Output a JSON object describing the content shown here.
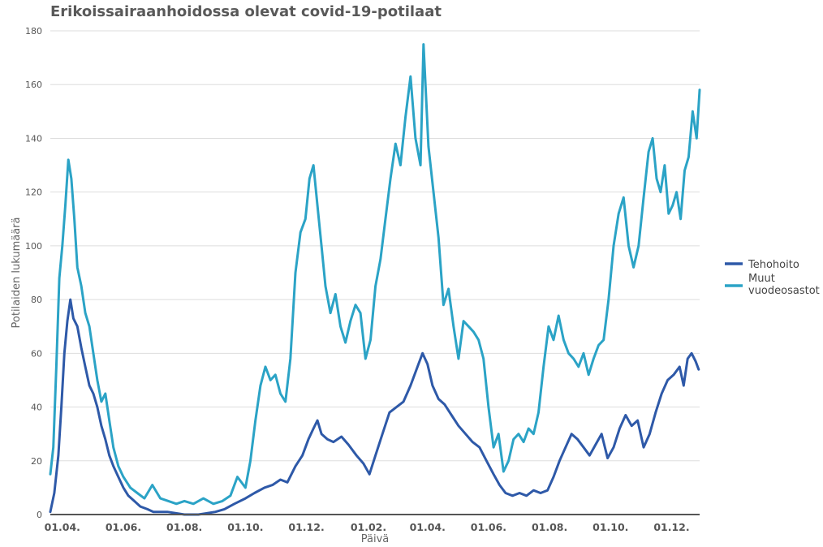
{
  "chart_data": {
    "type": "line",
    "title": "Erikoissairaanhoidossa olevat covid-19-potilaat",
    "xlabel": "Päivä",
    "ylabel": "Potilaiden lukumäärä",
    "ylim": [
      0,
      180
    ],
    "yticks": [
      "0",
      "20",
      "40",
      "60",
      "80",
      "100",
      "120",
      "140",
      "160",
      "180"
    ],
    "x_start": "2020-03-20",
    "x_end": "2021-12-29",
    "xticks": [
      {
        "date": "2020-04-01",
        "label": "01.04."
      },
      {
        "date": "2020-06-01",
        "label": "01.06."
      },
      {
        "date": "2020-08-01",
        "label": "01.08."
      },
      {
        "date": "2020-10-01",
        "label": "01.10."
      },
      {
        "date": "2020-12-01",
        "label": "01.12."
      },
      {
        "date": "2021-02-01",
        "label": "01.02."
      },
      {
        "date": "2021-04-01",
        "label": "01.04."
      },
      {
        "date": "2021-06-01",
        "label": "01.06."
      },
      {
        "date": "2021-08-01",
        "label": "01.08."
      },
      {
        "date": "2021-10-01",
        "label": "01.10."
      },
      {
        "date": "2021-12-01",
        "label": "01.12."
      }
    ],
    "grid": true,
    "legend": "right",
    "series": [
      {
        "name": "Tehohoito",
        "color": "#2E59A8",
        "points": [
          [
            "2020-03-20",
            1
          ],
          [
            "2020-03-24",
            8
          ],
          [
            "2020-03-28",
            22
          ],
          [
            "2020-03-31",
            40
          ],
          [
            "2020-04-03",
            60
          ],
          [
            "2020-04-06",
            72
          ],
          [
            "2020-04-09",
            80
          ],
          [
            "2020-04-12",
            73
          ],
          [
            "2020-04-16",
            70
          ],
          [
            "2020-04-20",
            62
          ],
          [
            "2020-04-24",
            55
          ],
          [
            "2020-04-28",
            48
          ],
          [
            "2020-05-02",
            45
          ],
          [
            "2020-05-06",
            40
          ],
          [
            "2020-05-10",
            33
          ],
          [
            "2020-05-14",
            28
          ],
          [
            "2020-05-18",
            22
          ],
          [
            "2020-05-22",
            18
          ],
          [
            "2020-05-27",
            14
          ],
          [
            "2020-06-01",
            10
          ],
          [
            "2020-06-06",
            7
          ],
          [
            "2020-06-12",
            5
          ],
          [
            "2020-06-18",
            3
          ],
          [
            "2020-06-25",
            2
          ],
          [
            "2020-07-01",
            1
          ],
          [
            "2020-07-15",
            1
          ],
          [
            "2020-08-01",
            0
          ],
          [
            "2020-08-15",
            0
          ],
          [
            "2020-09-01",
            1
          ],
          [
            "2020-09-10",
            2
          ],
          [
            "2020-09-20",
            4
          ],
          [
            "2020-10-01",
            6
          ],
          [
            "2020-10-10",
            8
          ],
          [
            "2020-10-20",
            10
          ],
          [
            "2020-10-28",
            11
          ],
          [
            "2020-11-05",
            13
          ],
          [
            "2020-11-12",
            12
          ],
          [
            "2020-11-20",
            18
          ],
          [
            "2020-11-27",
            22
          ],
          [
            "2020-12-03",
            28
          ],
          [
            "2020-12-08",
            32
          ],
          [
            "2020-12-12",
            35
          ],
          [
            "2020-12-16",
            30
          ],
          [
            "2020-12-22",
            28
          ],
          [
            "2020-12-28",
            27
          ],
          [
            "2021-01-05",
            29
          ],
          [
            "2021-01-12",
            26
          ],
          [
            "2021-01-20",
            22
          ],
          [
            "2021-01-27",
            19
          ],
          [
            "2021-02-02",
            15
          ],
          [
            "2021-02-08",
            22
          ],
          [
            "2021-02-15",
            30
          ],
          [
            "2021-02-22",
            38
          ],
          [
            "2021-03-01",
            40
          ],
          [
            "2021-03-08",
            42
          ],
          [
            "2021-03-15",
            48
          ],
          [
            "2021-03-22",
            55
          ],
          [
            "2021-03-27",
            60
          ],
          [
            "2021-04-01",
            56
          ],
          [
            "2021-04-06",
            48
          ],
          [
            "2021-04-12",
            43
          ],
          [
            "2021-04-18",
            41
          ],
          [
            "2021-04-25",
            37
          ],
          [
            "2021-05-02",
            33
          ],
          [
            "2021-05-09",
            30
          ],
          [
            "2021-05-16",
            27
          ],
          [
            "2021-05-23",
            25
          ],
          [
            "2021-05-30",
            20
          ],
          [
            "2021-06-06",
            15
          ],
          [
            "2021-06-12",
            11
          ],
          [
            "2021-06-18",
            8
          ],
          [
            "2021-06-25",
            7
          ],
          [
            "2021-07-02",
            8
          ],
          [
            "2021-07-09",
            7
          ],
          [
            "2021-07-16",
            9
          ],
          [
            "2021-07-23",
            8
          ],
          [
            "2021-07-30",
            9
          ],
          [
            "2021-08-05",
            14
          ],
          [
            "2021-08-11",
            20
          ],
          [
            "2021-08-17",
            25
          ],
          [
            "2021-08-23",
            30
          ],
          [
            "2021-08-29",
            28
          ],
          [
            "2021-09-04",
            25
          ],
          [
            "2021-09-10",
            22
          ],
          [
            "2021-09-16",
            26
          ],
          [
            "2021-09-22",
            30
          ],
          [
            "2021-09-28",
            21
          ],
          [
            "2021-10-04",
            25
          ],
          [
            "2021-10-10",
            32
          ],
          [
            "2021-10-16",
            37
          ],
          [
            "2021-10-22",
            33
          ],
          [
            "2021-10-28",
            35
          ],
          [
            "2021-11-03",
            25
          ],
          [
            "2021-11-09",
            30
          ],
          [
            "2021-11-15",
            38
          ],
          [
            "2021-11-21",
            45
          ],
          [
            "2021-11-27",
            50
          ],
          [
            "2021-12-03",
            52
          ],
          [
            "2021-12-09",
            55
          ],
          [
            "2021-12-13",
            48
          ],
          [
            "2021-12-17",
            58
          ],
          [
            "2021-12-21",
            60
          ],
          [
            "2021-12-25",
            57
          ],
          [
            "2021-12-28",
            54
          ]
        ]
      },
      {
        "name": "Muut vuodeosastot",
        "color": "#2BA3C6",
        "points": [
          [
            "2020-03-20",
            15
          ],
          [
            "2020-03-23",
            25
          ],
          [
            "2020-03-26",
            55
          ],
          [
            "2020-03-29",
            88
          ],
          [
            "2020-04-01",
            100
          ],
          [
            "2020-04-04",
            115
          ],
          [
            "2020-04-07",
            132
          ],
          [
            "2020-04-10",
            125
          ],
          [
            "2020-04-13",
            110
          ],
          [
            "2020-04-16",
            92
          ],
          [
            "2020-04-20",
            85
          ],
          [
            "2020-04-24",
            75
          ],
          [
            "2020-04-28",
            70
          ],
          [
            "2020-05-02",
            60
          ],
          [
            "2020-05-06",
            50
          ],
          [
            "2020-05-10",
            42
          ],
          [
            "2020-05-14",
            45
          ],
          [
            "2020-05-18",
            35
          ],
          [
            "2020-05-22",
            25
          ],
          [
            "2020-05-27",
            18
          ],
          [
            "2020-06-01",
            14
          ],
          [
            "2020-06-08",
            10
          ],
          [
            "2020-06-15",
            8
          ],
          [
            "2020-06-22",
            6
          ],
          [
            "2020-06-30",
            11
          ],
          [
            "2020-07-08",
            6
          ],
          [
            "2020-07-16",
            5
          ],
          [
            "2020-07-24",
            4
          ],
          [
            "2020-08-01",
            5
          ],
          [
            "2020-08-10",
            4
          ],
          [
            "2020-08-20",
            6
          ],
          [
            "2020-08-30",
            4
          ],
          [
            "2020-09-08",
            5
          ],
          [
            "2020-09-16",
            7
          ],
          [
            "2020-09-23",
            14
          ],
          [
            "2020-10-01",
            10
          ],
          [
            "2020-10-06",
            20
          ],
          [
            "2020-10-11",
            35
          ],
          [
            "2020-10-16",
            48
          ],
          [
            "2020-10-21",
            55
          ],
          [
            "2020-10-26",
            50
          ],
          [
            "2020-10-31",
            52
          ],
          [
            "2020-11-05",
            45
          ],
          [
            "2020-11-10",
            42
          ],
          [
            "2020-11-15",
            58
          ],
          [
            "2020-11-20",
            90
          ],
          [
            "2020-11-25",
            105
          ],
          [
            "2020-11-30",
            110
          ],
          [
            "2020-12-04",
            125
          ],
          [
            "2020-12-08",
            130
          ],
          [
            "2020-12-12",
            115
          ],
          [
            "2020-12-16",
            100
          ],
          [
            "2020-12-20",
            85
          ],
          [
            "2020-12-25",
            75
          ],
          [
            "2020-12-30",
            82
          ],
          [
            "2021-01-04",
            70
          ],
          [
            "2021-01-09",
            64
          ],
          [
            "2021-01-14",
            72
          ],
          [
            "2021-01-19",
            78
          ],
          [
            "2021-01-24",
            75
          ],
          [
            "2021-01-29",
            58
          ],
          [
            "2021-02-03",
            65
          ],
          [
            "2021-02-08",
            85
          ],
          [
            "2021-02-13",
            95
          ],
          [
            "2021-02-18",
            110
          ],
          [
            "2021-02-23",
            125
          ],
          [
            "2021-02-28",
            138
          ],
          [
            "2021-03-05",
            130
          ],
          [
            "2021-03-10",
            148
          ],
          [
            "2021-03-15",
            163
          ],
          [
            "2021-03-20",
            140
          ],
          [
            "2021-03-25",
            130
          ],
          [
            "2021-03-28",
            175
          ],
          [
            "2021-04-02",
            137
          ],
          [
            "2021-04-07",
            120
          ],
          [
            "2021-04-12",
            103
          ],
          [
            "2021-04-17",
            78
          ],
          [
            "2021-04-22",
            84
          ],
          [
            "2021-04-27",
            70
          ],
          [
            "2021-05-02",
            58
          ],
          [
            "2021-05-07",
            72
          ],
          [
            "2021-05-12",
            70
          ],
          [
            "2021-05-17",
            68
          ],
          [
            "2021-05-22",
            65
          ],
          [
            "2021-05-27",
            58
          ],
          [
            "2021-06-01",
            40
          ],
          [
            "2021-06-06",
            25
          ],
          [
            "2021-06-11",
            30
          ],
          [
            "2021-06-16",
            16
          ],
          [
            "2021-06-21",
            20
          ],
          [
            "2021-06-26",
            28
          ],
          [
            "2021-07-01",
            30
          ],
          [
            "2021-07-06",
            27
          ],
          [
            "2021-07-11",
            32
          ],
          [
            "2021-07-16",
            30
          ],
          [
            "2021-07-21",
            38
          ],
          [
            "2021-07-26",
            55
          ],
          [
            "2021-07-31",
            70
          ],
          [
            "2021-08-05",
            65
          ],
          [
            "2021-08-10",
            74
          ],
          [
            "2021-08-15",
            65
          ],
          [
            "2021-08-20",
            60
          ],
          [
            "2021-08-25",
            58
          ],
          [
            "2021-08-30",
            55
          ],
          [
            "2021-09-04",
            60
          ],
          [
            "2021-09-09",
            52
          ],
          [
            "2021-09-14",
            58
          ],
          [
            "2021-09-19",
            63
          ],
          [
            "2021-09-24",
            65
          ],
          [
            "2021-09-29",
            80
          ],
          [
            "2021-10-04",
            100
          ],
          [
            "2021-10-09",
            112
          ],
          [
            "2021-10-14",
            118
          ],
          [
            "2021-10-19",
            100
          ],
          [
            "2021-10-24",
            92
          ],
          [
            "2021-10-29",
            100
          ],
          [
            "2021-11-03",
            118
          ],
          [
            "2021-11-08",
            135
          ],
          [
            "2021-11-12",
            140
          ],
          [
            "2021-11-16",
            125
          ],
          [
            "2021-11-20",
            120
          ],
          [
            "2021-11-24",
            130
          ],
          [
            "2021-11-28",
            112
          ],
          [
            "2021-12-02",
            115
          ],
          [
            "2021-12-06",
            120
          ],
          [
            "2021-12-10",
            110
          ],
          [
            "2021-12-14",
            128
          ],
          [
            "2021-12-18",
            133
          ],
          [
            "2021-12-22",
            150
          ],
          [
            "2021-12-26",
            140
          ],
          [
            "2021-12-29",
            158
          ]
        ]
      }
    ]
  }
}
